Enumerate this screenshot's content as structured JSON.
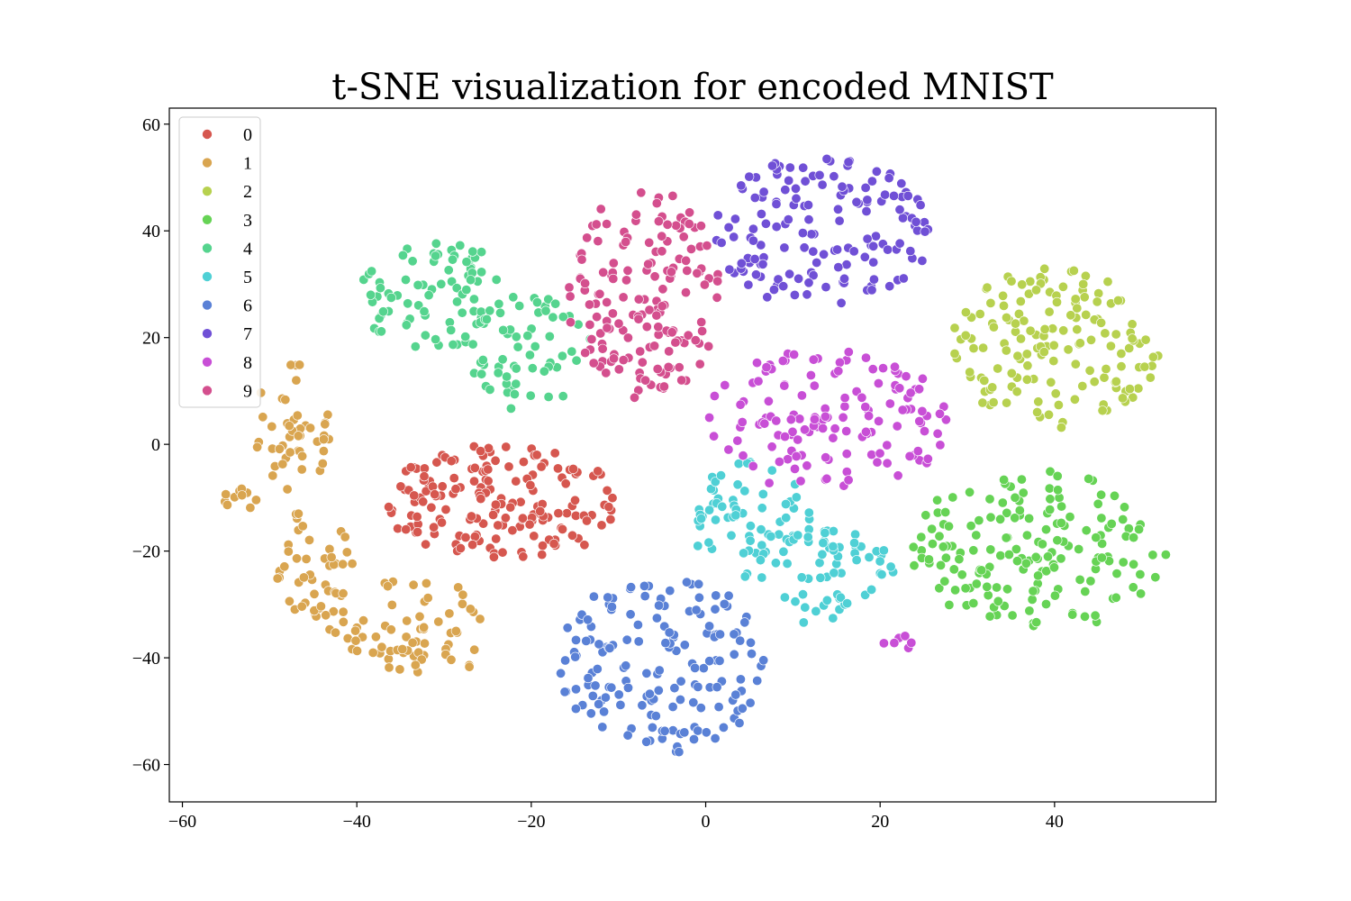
{
  "chart_data": {
    "type": "scatter",
    "title": "t-SNE visualization for encoded MNIST",
    "xlabel": "",
    "ylabel": "",
    "xlim": [
      -61.5,
      58.5
    ],
    "ylim": [
      -67,
      63
    ],
    "x_ticks": [
      -60,
      -40,
      -20,
      0,
      20,
      40
    ],
    "y_ticks": [
      -60,
      -40,
      -20,
      0,
      20,
      40,
      60
    ],
    "x_tick_labels": [
      "−60",
      "−40",
      "−20",
      "0",
      "20",
      "40"
    ],
    "y_tick_labels": [
      "−60",
      "−40",
      "−20",
      "0",
      "20",
      "40",
      "60"
    ],
    "grid": false,
    "legend_position": "top-left",
    "series": [
      {
        "name": "0",
        "color": "#d6574f",
        "clusters": [
          {
            "cx": -23,
            "cy": -11,
            "rx": 14,
            "ry": 11,
            "n": 170
          }
        ]
      },
      {
        "name": "1",
        "color": "#d9a550",
        "clusters": [
          {
            "cx": -47,
            "cy": 4,
            "rx": 5,
            "ry": 13,
            "n": 45
          },
          {
            "cx": -53,
            "cy": -10,
            "rx": 3,
            "ry": 2,
            "n": 10
          },
          {
            "cx": -45,
            "cy": -22,
            "rx": 5,
            "ry": 10,
            "n": 40
          },
          {
            "cx": -35,
            "cy": -32,
            "rx": 10,
            "ry": 8,
            "n": 55
          },
          {
            "cx": -32,
            "cy": -40,
            "rx": 7,
            "ry": 3,
            "n": 20
          }
        ]
      },
      {
        "name": "2",
        "color": "#b7d14f",
        "clusters": [
          {
            "cx": 40,
            "cy": 18,
            "rx": 12,
            "ry": 15,
            "n": 150
          }
        ]
      },
      {
        "name": "3",
        "color": "#66d355",
        "clusters": [
          {
            "cx": 38,
            "cy": -20,
            "rx": 15,
            "ry": 15,
            "n": 170
          }
        ]
      },
      {
        "name": "4",
        "color": "#55d48e",
        "clusters": [
          {
            "cx": -31,
            "cy": 28,
            "rx": 9,
            "ry": 10,
            "n": 80
          },
          {
            "cx": -20,
            "cy": 17,
            "rx": 7,
            "ry": 11,
            "n": 60
          }
        ]
      },
      {
        "name": "5",
        "color": "#4fd0d5",
        "clusters": [
          {
            "cx": 5,
            "cy": -14,
            "rx": 7,
            "ry": 11,
            "n": 70
          },
          {
            "cx": 14,
            "cy": -25,
            "rx": 8,
            "ry": 9,
            "n": 60
          }
        ]
      },
      {
        "name": "6",
        "color": "#5a81d6",
        "clusters": [
          {
            "cx": -5,
            "cy": -41,
            "rx": 12,
            "ry": 17,
            "n": 160
          }
        ]
      },
      {
        "name": "7",
        "color": "#7050d6",
        "clusters": [
          {
            "cx": 13,
            "cy": 40,
            "rx": 13,
            "ry": 14,
            "n": 150
          }
        ]
      },
      {
        "name": "8",
        "color": "#c84fd6",
        "clusters": [
          {
            "cx": 14,
            "cy": 4,
            "rx": 14,
            "ry": 14,
            "n": 140
          },
          {
            "cx": 22,
            "cy": -37,
            "rx": 2,
            "ry": 1.5,
            "n": 6
          }
        ]
      },
      {
        "name": "9",
        "color": "#d44f8e",
        "clusters": [
          {
            "cx": -7,
            "cy": 28,
            "rx": 9,
            "ry": 20,
            "n": 160
          }
        ]
      }
    ]
  }
}
